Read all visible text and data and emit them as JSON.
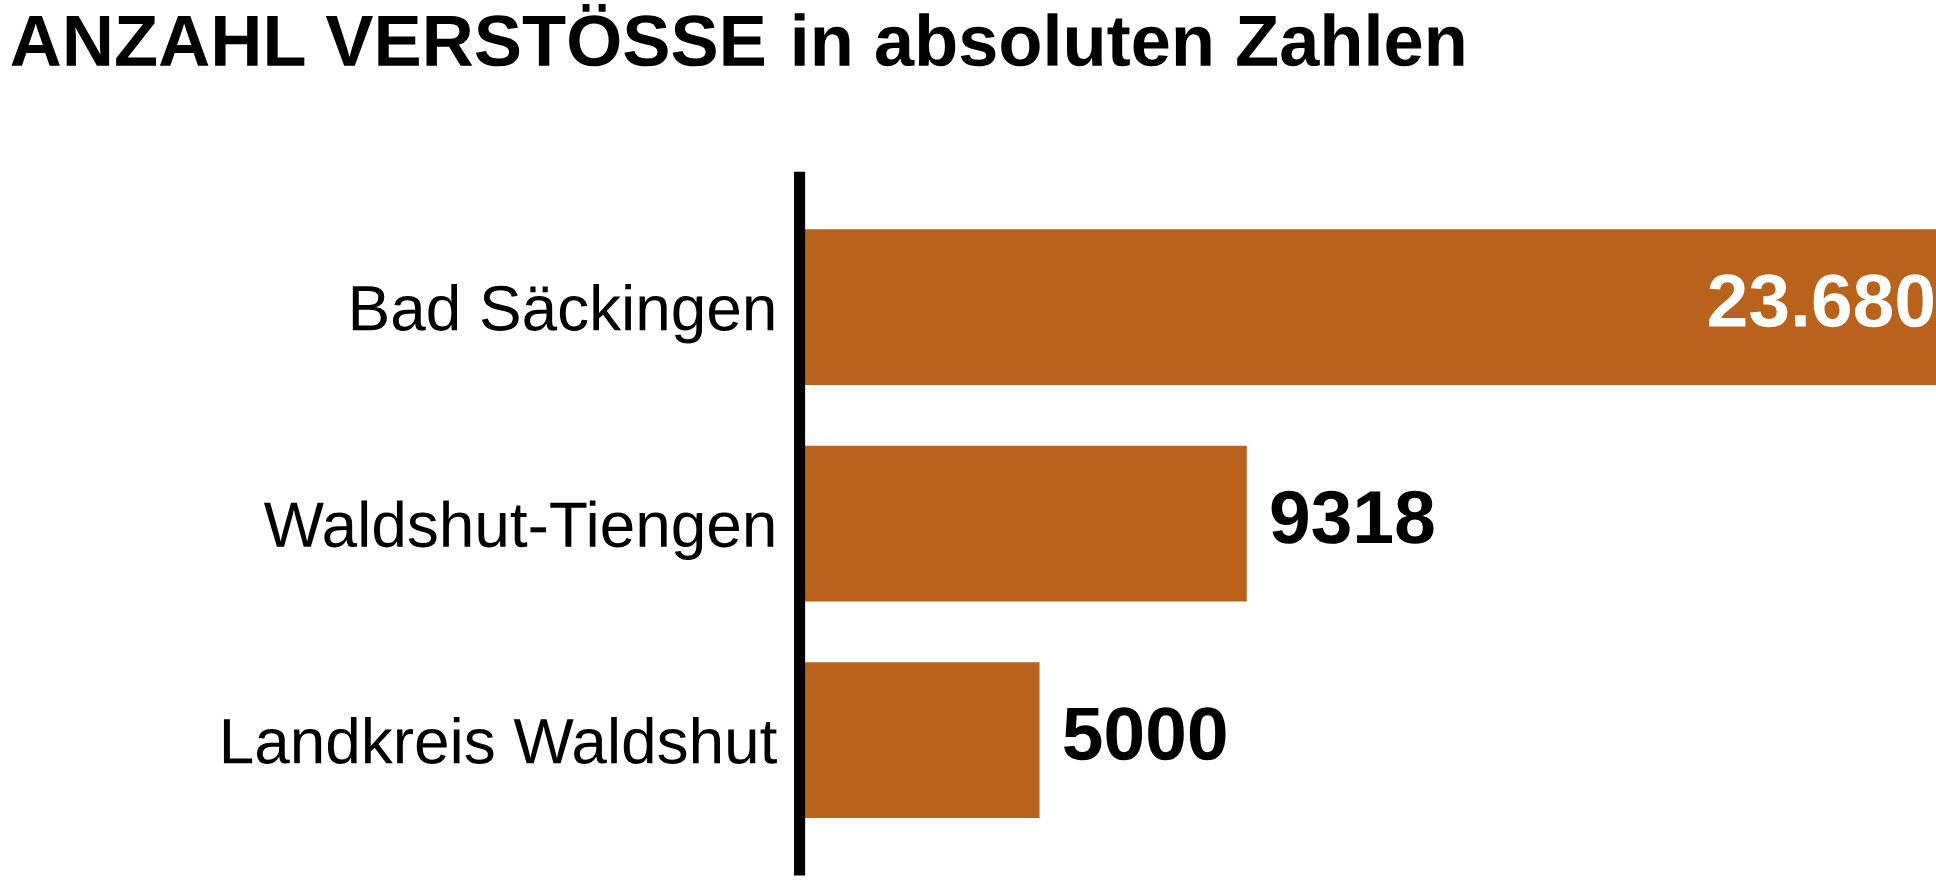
{
  "chart_data": {
    "type": "bar",
    "orientation": "horizontal",
    "title": "ANZAHL VERSTÖSSE",
    "subtitle": "in absoluten Zahlen",
    "categories": [
      "Bad Säckingen",
      "Waldshut-Tiengen",
      "Landkreis Waldshut"
    ],
    "values": [
      23680,
      9318,
      5000
    ],
    "value_labels": [
      "23.680",
      "9318",
      "5000"
    ],
    "color": "#b8621b",
    "xlim": [
      0,
      23680
    ],
    "tick_labels": "y",
    "grid": false,
    "legend": false
  }
}
